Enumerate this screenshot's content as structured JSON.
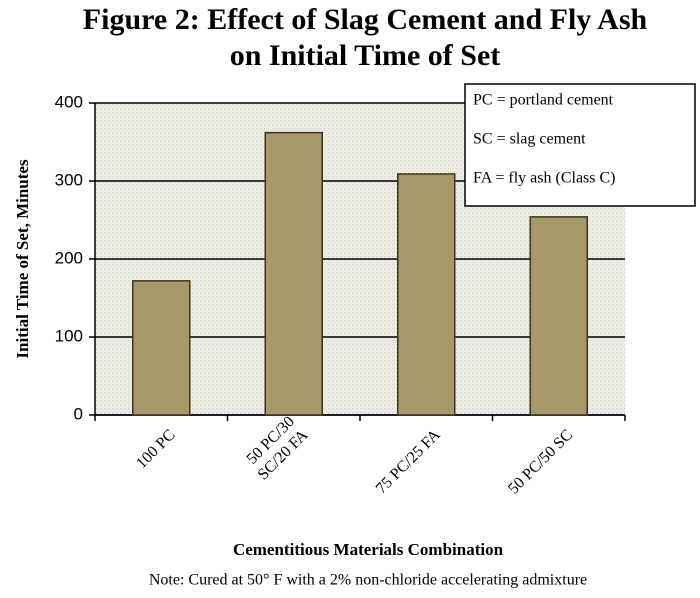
{
  "chart_data": {
    "type": "bar",
    "title": "Figure 2: Effect of Slag Cement and Fly Ash\non Initial Time of Set",
    "categories": [
      "100 PC",
      "50 PC/30\nSC/20 FA",
      "75 PC/25 FA",
      "50 PC/50 SC"
    ],
    "values": [
      172,
      362,
      309,
      254
    ],
    "color": "#a69868",
    "ylim": [
      0,
      400
    ],
    "yticks": [
      0,
      100,
      200,
      300,
      400
    ],
    "grid": true,
    "x_label": "Cementitious Materials Combination",
    "y_label": "Initial Time of Set, Minutes",
    "legend_notes": [
      "PC = portland cement",
      "SC = slag cement",
      "FA = fly ash (Class C)"
    ],
    "note": "Note: Cured at 50° F with a 2% non-chloride accelerating admixture"
  }
}
